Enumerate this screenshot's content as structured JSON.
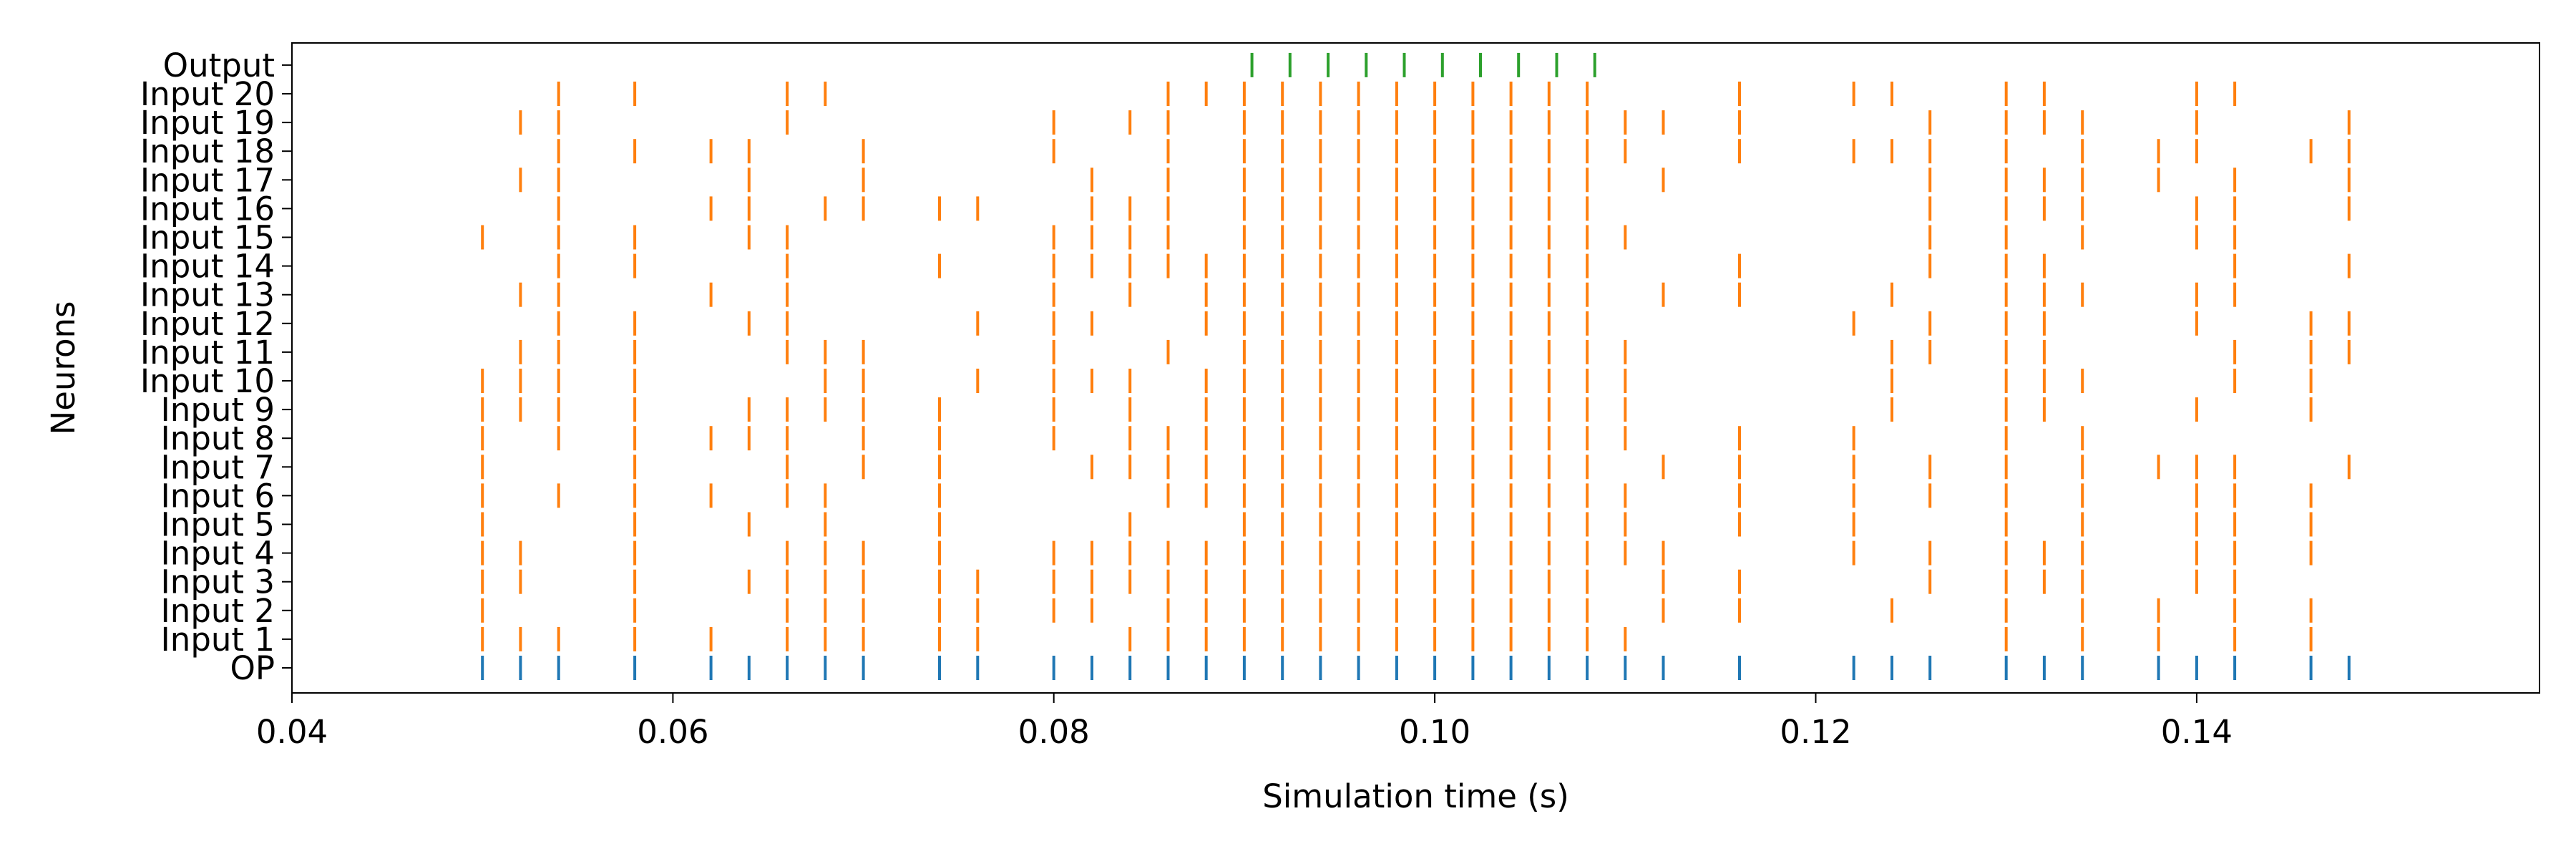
{
  "chart_data": {
    "type": "scatter",
    "title": "",
    "xlabel": "Simulation time (s)",
    "ylabel": "Neurons",
    "xlim": [
      0.04,
      0.158
    ],
    "xticks": [
      {
        "value": 0.04,
        "label": "0.04"
      },
      {
        "value": 0.06,
        "label": "0.06"
      },
      {
        "value": 0.08,
        "label": "0.08"
      },
      {
        "value": 0.1,
        "label": "0.10"
      },
      {
        "value": 0.12,
        "label": "0.12"
      },
      {
        "value": 0.14,
        "label": "0.14"
      }
    ],
    "grid": false,
    "legend": "none",
    "colors": {
      "op": "#1f77b4",
      "input": "#ff7f0e",
      "output": "#2ca02c",
      "axis": "#000000"
    },
    "rows": [
      {
        "label": "OP",
        "color": "op",
        "spikes": [
          0.05,
          0.052,
          0.054,
          0.058,
          0.062,
          0.064,
          0.066,
          0.068,
          0.07,
          0.074,
          0.076,
          0.08,
          0.082,
          0.084,
          0.086,
          0.088,
          0.09,
          0.092,
          0.094,
          0.096,
          0.098,
          0.1,
          0.102,
          0.104,
          0.106,
          0.108,
          0.11,
          0.112,
          0.116,
          0.122,
          0.124,
          0.126,
          0.13,
          0.132,
          0.134,
          0.138,
          0.14,
          0.142,
          0.146,
          0.148
        ]
      },
      {
        "label": "Input 1",
        "color": "input",
        "spikes": [
          0.05,
          0.052,
          0.054,
          0.058,
          0.062,
          0.066,
          0.068,
          0.07,
          0.074,
          0.076,
          0.084,
          0.086,
          0.088,
          0.09,
          0.092,
          0.094,
          0.096,
          0.098,
          0.1,
          0.102,
          0.104,
          0.106,
          0.108,
          0.11,
          0.13,
          0.134,
          0.138,
          0.142,
          0.146
        ]
      },
      {
        "label": "Input 2",
        "color": "input",
        "spikes": [
          0.05,
          0.058,
          0.066,
          0.068,
          0.07,
          0.074,
          0.076,
          0.08,
          0.082,
          0.086,
          0.088,
          0.09,
          0.092,
          0.094,
          0.096,
          0.098,
          0.1,
          0.102,
          0.104,
          0.106,
          0.108,
          0.112,
          0.116,
          0.124,
          0.13,
          0.134,
          0.138,
          0.142,
          0.146
        ]
      },
      {
        "label": "Input 3",
        "color": "input",
        "spikes": [
          0.05,
          0.052,
          0.058,
          0.064,
          0.066,
          0.068,
          0.07,
          0.074,
          0.076,
          0.08,
          0.082,
          0.084,
          0.086,
          0.088,
          0.09,
          0.092,
          0.094,
          0.096,
          0.098,
          0.1,
          0.102,
          0.104,
          0.106,
          0.108,
          0.112,
          0.116,
          0.126,
          0.13,
          0.132,
          0.134,
          0.14,
          0.142
        ]
      },
      {
        "label": "Input 4",
        "color": "input",
        "spikes": [
          0.05,
          0.052,
          0.058,
          0.066,
          0.068,
          0.07,
          0.074,
          0.08,
          0.082,
          0.084,
          0.086,
          0.088,
          0.09,
          0.092,
          0.094,
          0.096,
          0.098,
          0.1,
          0.102,
          0.104,
          0.106,
          0.108,
          0.11,
          0.112,
          0.122,
          0.126,
          0.13,
          0.132,
          0.134,
          0.14,
          0.142,
          0.146
        ]
      },
      {
        "label": "Input 5",
        "color": "input",
        "spikes": [
          0.05,
          0.058,
          0.064,
          0.068,
          0.074,
          0.084,
          0.09,
          0.092,
          0.094,
          0.096,
          0.098,
          0.1,
          0.102,
          0.104,
          0.106,
          0.108,
          0.11,
          0.116,
          0.122,
          0.13,
          0.134,
          0.14,
          0.142,
          0.146
        ]
      },
      {
        "label": "Input 6",
        "color": "input",
        "spikes": [
          0.05,
          0.054,
          0.058,
          0.062,
          0.066,
          0.068,
          0.074,
          0.086,
          0.088,
          0.09,
          0.092,
          0.094,
          0.096,
          0.098,
          0.1,
          0.102,
          0.104,
          0.106,
          0.108,
          0.11,
          0.116,
          0.122,
          0.126,
          0.13,
          0.134,
          0.14,
          0.142,
          0.146
        ]
      },
      {
        "label": "Input 7",
        "color": "input",
        "spikes": [
          0.05,
          0.058,
          0.066,
          0.07,
          0.074,
          0.082,
          0.084,
          0.086,
          0.088,
          0.09,
          0.092,
          0.094,
          0.096,
          0.098,
          0.1,
          0.102,
          0.104,
          0.106,
          0.108,
          0.112,
          0.116,
          0.122,
          0.126,
          0.13,
          0.134,
          0.138,
          0.14,
          0.142,
          0.148
        ]
      },
      {
        "label": "Input 8",
        "color": "input",
        "spikes": [
          0.05,
          0.054,
          0.058,
          0.062,
          0.064,
          0.066,
          0.07,
          0.074,
          0.08,
          0.084,
          0.086,
          0.088,
          0.09,
          0.092,
          0.094,
          0.096,
          0.098,
          0.1,
          0.102,
          0.104,
          0.106,
          0.108,
          0.11,
          0.116,
          0.122,
          0.13,
          0.134
        ]
      },
      {
        "label": "Input 9",
        "color": "input",
        "spikes": [
          0.05,
          0.052,
          0.054,
          0.058,
          0.064,
          0.066,
          0.068,
          0.07,
          0.074,
          0.08,
          0.084,
          0.088,
          0.09,
          0.092,
          0.094,
          0.096,
          0.098,
          0.1,
          0.102,
          0.104,
          0.106,
          0.108,
          0.11,
          0.124,
          0.13,
          0.132,
          0.14,
          0.146
        ]
      },
      {
        "label": "Input 10",
        "color": "input",
        "spikes": [
          0.05,
          0.052,
          0.054,
          0.058,
          0.068,
          0.07,
          0.076,
          0.08,
          0.082,
          0.084,
          0.088,
          0.09,
          0.092,
          0.094,
          0.096,
          0.098,
          0.1,
          0.102,
          0.104,
          0.106,
          0.108,
          0.11,
          0.124,
          0.13,
          0.132,
          0.134,
          0.142,
          0.146
        ]
      },
      {
        "label": "Input 11",
        "color": "input",
        "spikes": [
          0.052,
          0.054,
          0.058,
          0.066,
          0.068,
          0.07,
          0.08,
          0.086,
          0.09,
          0.092,
          0.094,
          0.096,
          0.098,
          0.1,
          0.102,
          0.104,
          0.106,
          0.108,
          0.11,
          0.124,
          0.126,
          0.13,
          0.132,
          0.142,
          0.146,
          0.148
        ]
      },
      {
        "label": "Input 12",
        "color": "input",
        "spikes": [
          0.054,
          0.058,
          0.064,
          0.066,
          0.076,
          0.08,
          0.082,
          0.088,
          0.09,
          0.092,
          0.094,
          0.096,
          0.098,
          0.1,
          0.102,
          0.104,
          0.106,
          0.108,
          0.122,
          0.126,
          0.13,
          0.132,
          0.14,
          0.146,
          0.148
        ]
      },
      {
        "label": "Input 13",
        "color": "input",
        "spikes": [
          0.052,
          0.054,
          0.062,
          0.066,
          0.08,
          0.084,
          0.088,
          0.09,
          0.092,
          0.094,
          0.096,
          0.098,
          0.1,
          0.102,
          0.104,
          0.106,
          0.108,
          0.112,
          0.116,
          0.124,
          0.13,
          0.132,
          0.134,
          0.14,
          0.142
        ]
      },
      {
        "label": "Input 14",
        "color": "input",
        "spikes": [
          0.054,
          0.058,
          0.066,
          0.074,
          0.08,
          0.082,
          0.084,
          0.086,
          0.088,
          0.09,
          0.092,
          0.094,
          0.096,
          0.098,
          0.1,
          0.102,
          0.104,
          0.106,
          0.108,
          0.116,
          0.126,
          0.13,
          0.132,
          0.142,
          0.148
        ]
      },
      {
        "label": "Input 15",
        "color": "input",
        "spikes": [
          0.05,
          0.054,
          0.058,
          0.064,
          0.066,
          0.08,
          0.082,
          0.084,
          0.086,
          0.09,
          0.092,
          0.094,
          0.096,
          0.098,
          0.1,
          0.102,
          0.104,
          0.106,
          0.108,
          0.11,
          0.126,
          0.13,
          0.134,
          0.14,
          0.142
        ]
      },
      {
        "label": "Input 16",
        "color": "input",
        "spikes": [
          0.054,
          0.062,
          0.064,
          0.068,
          0.07,
          0.074,
          0.076,
          0.082,
          0.084,
          0.086,
          0.09,
          0.092,
          0.094,
          0.096,
          0.098,
          0.1,
          0.102,
          0.104,
          0.106,
          0.108,
          0.126,
          0.13,
          0.132,
          0.134,
          0.14,
          0.142,
          0.148
        ]
      },
      {
        "label": "Input 17",
        "color": "input",
        "spikes": [
          0.052,
          0.054,
          0.064,
          0.07,
          0.082,
          0.086,
          0.09,
          0.092,
          0.094,
          0.096,
          0.098,
          0.1,
          0.102,
          0.104,
          0.106,
          0.108,
          0.112,
          0.126,
          0.13,
          0.132,
          0.134,
          0.138,
          0.142,
          0.148
        ]
      },
      {
        "label": "Input 18",
        "color": "input",
        "spikes": [
          0.054,
          0.058,
          0.062,
          0.064,
          0.07,
          0.08,
          0.086,
          0.09,
          0.092,
          0.094,
          0.096,
          0.098,
          0.1,
          0.102,
          0.104,
          0.106,
          0.108,
          0.11,
          0.116,
          0.122,
          0.124,
          0.126,
          0.13,
          0.134,
          0.138,
          0.14,
          0.146,
          0.148
        ]
      },
      {
        "label": "Input 19",
        "color": "input",
        "spikes": [
          0.052,
          0.054,
          0.066,
          0.08,
          0.084,
          0.086,
          0.09,
          0.092,
          0.094,
          0.096,
          0.098,
          0.1,
          0.102,
          0.104,
          0.106,
          0.108,
          0.11,
          0.112,
          0.116,
          0.126,
          0.13,
          0.132,
          0.134,
          0.14,
          0.148
        ]
      },
      {
        "label": "Input 20",
        "color": "input",
        "spikes": [
          0.054,
          0.058,
          0.066,
          0.068,
          0.086,
          0.088,
          0.09,
          0.092,
          0.094,
          0.096,
          0.098,
          0.1,
          0.102,
          0.104,
          0.106,
          0.108,
          0.116,
          0.122,
          0.124,
          0.13,
          0.132,
          0.14,
          0.142
        ]
      },
      {
        "label": "Output",
        "color": "output",
        "spikes": [
          0.0904,
          0.0924,
          0.0944,
          0.0964,
          0.0984,
          0.1004,
          0.1024,
          0.1044,
          0.1064,
          0.1084
        ]
      }
    ]
  }
}
